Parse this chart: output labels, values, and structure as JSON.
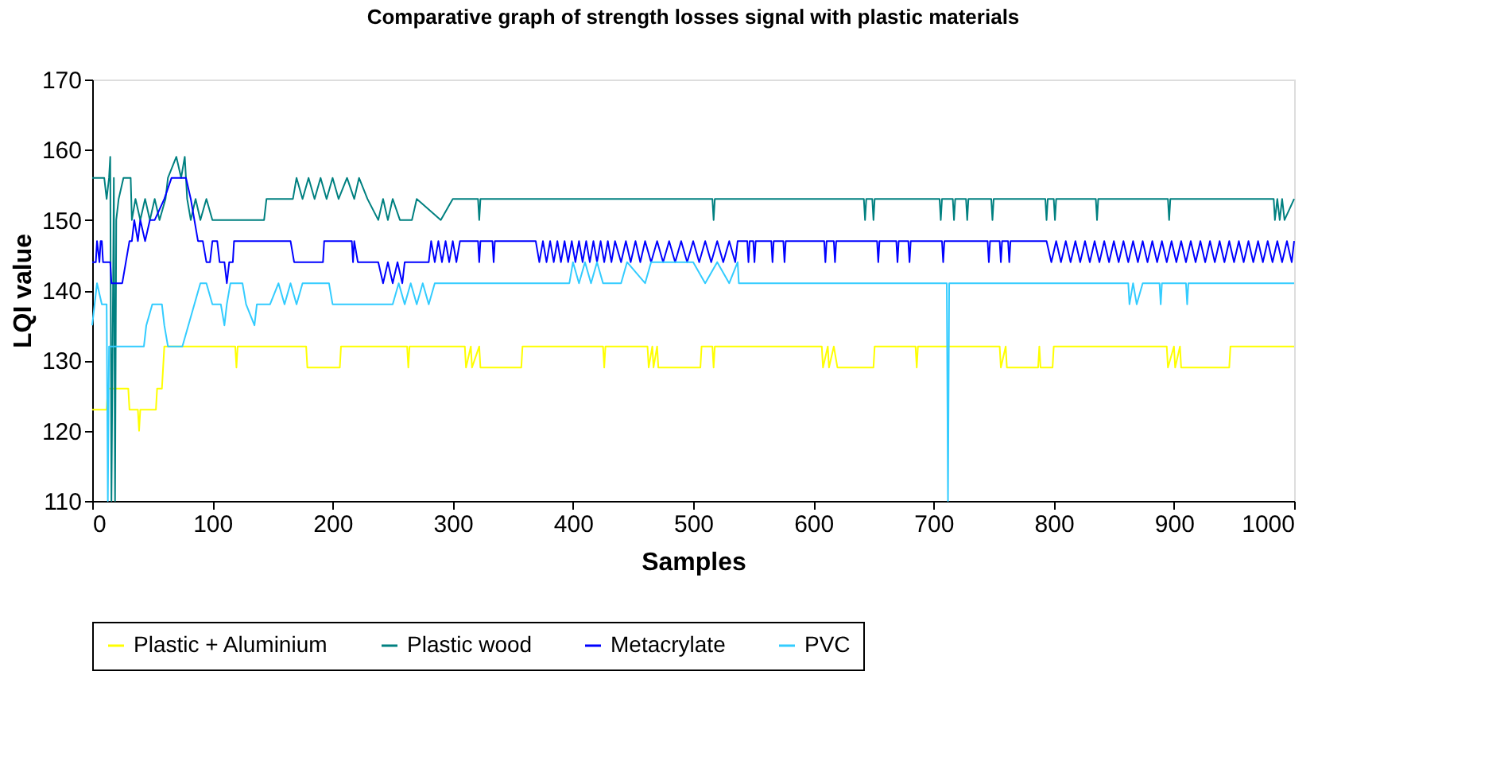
{
  "chart_data": {
    "type": "line",
    "title": "Comparative graph of strength losses signal with plastic materials",
    "xlabel": "Samples",
    "ylabel": "LQI value",
    "xlim": [
      0,
      1000
    ],
    "xticks": [
      0,
      100,
      200,
      300,
      400,
      500,
      600,
      700,
      800,
      900,
      1000
    ],
    "ylim": [
      110,
      170
    ],
    "yticks": [
      110,
      120,
      130,
      140,
      150,
      160,
      170
    ],
    "grid": false,
    "legend": "bottom",
    "marker": "none",
    "line_style": "solid",
    "series": [
      {
        "name": "Plastic + Aluminium",
        "color": "#ffff00",
        "x": [
          0,
          12,
          13,
          30,
          31,
          38,
          39,
          40,
          53,
          54,
          58,
          60,
          119,
          120,
          121,
          178,
          179,
          206,
          207,
          262,
          263,
          264,
          310,
          311,
          315,
          316,
          322,
          323,
          357,
          358,
          425,
          426,
          427,
          462,
          463,
          466,
          467,
          470,
          471,
          506,
          507,
          516,
          517,
          518,
          607,
          608,
          612,
          613,
          617,
          620,
          650,
          651,
          685,
          686,
          687,
          755,
          756,
          760,
          761,
          787,
          788,
          789,
          799,
          800,
          894,
          895,
          900,
          901,
          905,
          906,
          946,
          947,
          1000
        ],
        "values": [
          123,
          123,
          126,
          126,
          123,
          123,
          120,
          123,
          123,
          126,
          126,
          132,
          132,
          129,
          132,
          132,
          129,
          129,
          132,
          132,
          129,
          132,
          132,
          129,
          132,
          129,
          132,
          129,
          129,
          132,
          132,
          129,
          132,
          132,
          129,
          132,
          129,
          132,
          129,
          129,
          132,
          132,
          129,
          132,
          132,
          129,
          132,
          129,
          132,
          129,
          129,
          132,
          132,
          129,
          132,
          132,
          129,
          132,
          129,
          129,
          132,
          129,
          129,
          132,
          132,
          129,
          132,
          129,
          132,
          129,
          129,
          132,
          132
        ]
      },
      {
        "name": "Plastic wood",
        "color": "#008080",
        "x": [
          0,
          10,
          12,
          14,
          15,
          16,
          18,
          19,
          20,
          22,
          26,
          32,
          33,
          36,
          40,
          44,
          48,
          52,
          56,
          61,
          63,
          70,
          74,
          77,
          79,
          82,
          86,
          90,
          95,
          100,
          105,
          143,
          145,
          167,
          170,
          175,
          180,
          185,
          190,
          195,
          200,
          205,
          212,
          218,
          222,
          229,
          238,
          242,
          246,
          250,
          256,
          266,
          270,
          290,
          300,
          321,
          322,
          323,
          516,
          517,
          518,
          642,
          643,
          644,
          649,
          650,
          651,
          705,
          706,
          707,
          716,
          717,
          718,
          727,
          728,
          729,
          748,
          749,
          750,
          793,
          794,
          795,
          800,
          801,
          802,
          835,
          836,
          837,
          895,
          896,
          897,
          983,
          984,
          986,
          988,
          990,
          992,
          1000
        ],
        "values": [
          156,
          156,
          153,
          156,
          159,
          110,
          156,
          110,
          150,
          153,
          156,
          156,
          150,
          153,
          150,
          153,
          150,
          153,
          150,
          153,
          156,
          159,
          156,
          159,
          153,
          150,
          153,
          150,
          153,
          150,
          150,
          150,
          153,
          153,
          156,
          153,
          156,
          153,
          156,
          153,
          156,
          153,
          156,
          153,
          156,
          153,
          150,
          153,
          150,
          153,
          150,
          150,
          153,
          150,
          153,
          153,
          150,
          153,
          153,
          150,
          153,
          153,
          150,
          153,
          153,
          150,
          153,
          153,
          150,
          153,
          153,
          150,
          153,
          153,
          150,
          153,
          153,
          150,
          153,
          153,
          150,
          153,
          153,
          150,
          153,
          153,
          150,
          153,
          153,
          150,
          153,
          153,
          150,
          153,
          150,
          153,
          150,
          153
        ]
      },
      {
        "name": "Metacrylate",
        "color": "#0000ff",
        "x": [
          0,
          3,
          4,
          6,
          7,
          8,
          9,
          15,
          16,
          25,
          28,
          31,
          33,
          35,
          38,
          40,
          44,
          48,
          52,
          60,
          66,
          78,
          82,
          85,
          88,
          92,
          95,
          98,
          100,
          104,
          106,
          110,
          112,
          114,
          117,
          118,
          165,
          168,
          192,
          193,
          216,
          217,
          218,
          221,
          238,
          242,
          246,
          250,
          254,
          258,
          260,
          280,
          282,
          285,
          288,
          291,
          294,
          297,
          300,
          303,
          306,
          321,
          322,
          323,
          333,
          334,
          335,
          369,
          372,
          375,
          378,
          381,
          384,
          387,
          390,
          393,
          396,
          399,
          402,
          405,
          408,
          411,
          414,
          417,
          420,
          423,
          426,
          429,
          432,
          435,
          440,
          444,
          448,
          452,
          456,
          460,
          465,
          470,
          475,
          480,
          485,
          490,
          495,
          500,
          505,
          510,
          515,
          520,
          525,
          530,
          535,
          537,
          545,
          546,
          547,
          550,
          551,
          552,
          565,
          566,
          567,
          575,
          576,
          577,
          609,
          610,
          611,
          617,
          618,
          619,
          653,
          654,
          655,
          669,
          670,
          671,
          679,
          680,
          681,
          707,
          708,
          709,
          745,
          746,
          747,
          755,
          756,
          757,
          762,
          763,
          764,
          794,
          798,
          802,
          806,
          810,
          814,
          818,
          822,
          826,
          830,
          834,
          838,
          842,
          846,
          850,
          854,
          858,
          862,
          866,
          870,
          874,
          878,
          882,
          886,
          890,
          894,
          898,
          902,
          906,
          910,
          914,
          918,
          922,
          926,
          930,
          934,
          938,
          942,
          946,
          950,
          954,
          958,
          962,
          966,
          970,
          974,
          978,
          982,
          986,
          990,
          994,
          998,
          1000
        ],
        "values": [
          144,
          144,
          147,
          144,
          147,
          147,
          144,
          144,
          141,
          141,
          144,
          147,
          147,
          150,
          147,
          150,
          147,
          150,
          150,
          153,
          156,
          156,
          153,
          150,
          147,
          147,
          144,
          144,
          147,
          147,
          144,
          144,
          141,
          144,
          144,
          147,
          147,
          144,
          144,
          147,
          147,
          144,
          147,
          144,
          144,
          141,
          144,
          141,
          144,
          141,
          144,
          144,
          147,
          144,
          147,
          144,
          147,
          144,
          147,
          144,
          147,
          147,
          144,
          147,
          147,
          144,
          147,
          147,
          144,
          147,
          144,
          147,
          144,
          147,
          144,
          147,
          144,
          147,
          144,
          147,
          144,
          147,
          144,
          147,
          144,
          147,
          144,
          147,
          144,
          147,
          144,
          147,
          144,
          147,
          144,
          147,
          144,
          147,
          144,
          147,
          144,
          147,
          144,
          147,
          144,
          147,
          144,
          147,
          144,
          147,
          144,
          147,
          147,
          144,
          147,
          147,
          144,
          147,
          147,
          144,
          147,
          147,
          144,
          147,
          147,
          144,
          147,
          147,
          144,
          147,
          147,
          144,
          147,
          147,
          144,
          147,
          147,
          144,
          147,
          147,
          144,
          147,
          147,
          144,
          147,
          147,
          144,
          147,
          147,
          144,
          147,
          147,
          144,
          147,
          144,
          147,
          144,
          147,
          144,
          147,
          144,
          147,
          144,
          147,
          144,
          147,
          144,
          147,
          144,
          147,
          144,
          147,
          144,
          147,
          144,
          147,
          144,
          147,
          144,
          147,
          144,
          147,
          144,
          147,
          144,
          147,
          144,
          147,
          144,
          147,
          144,
          147,
          144,
          147,
          144,
          147,
          144,
          147,
          144,
          147,
          144,
          147,
          144,
          147
        ]
      },
      {
        "name": "PVC",
        "color": "#33ccff",
        "x": [
          0,
          4,
          8,
          12,
          13,
          14,
          15,
          43,
          45,
          50,
          58,
          60,
          63,
          75,
          80,
          85,
          90,
          95,
          100,
          107,
          110,
          112,
          115,
          125,
          128,
          135,
          137,
          148,
          155,
          160,
          165,
          170,
          175,
          180,
          197,
          200,
          250,
          255,
          260,
          265,
          270,
          275,
          280,
          285,
          292,
          397,
          400,
          405,
          410,
          415,
          420,
          425,
          440,
          445,
          460,
          465,
          480,
          500,
          510,
          520,
          530,
          537,
          538,
          711,
          712,
          713,
          862,
          863,
          866,
          869,
          874,
          875,
          888,
          889,
          890,
          910,
          911,
          912,
          1000
        ],
        "values": [
          135,
          141,
          138,
          138,
          110,
          132,
          132,
          132,
          135,
          138,
          138,
          135,
          132,
          132,
          135,
          138,
          141,
          141,
          138,
          138,
          135,
          138,
          141,
          141,
          138,
          135,
          138,
          138,
          141,
          138,
          141,
          138,
          141,
          141,
          141,
          138,
          138,
          141,
          138,
          141,
          138,
          141,
          138,
          141,
          141,
          141,
          144,
          141,
          144,
          141,
          144,
          141,
          141,
          144,
          141,
          144,
          144,
          144,
          141,
          144,
          141,
          144,
          141,
          141,
          110,
          141,
          141,
          138,
          141,
          138,
          141,
          141,
          141,
          138,
          141,
          141,
          138,
          141,
          141
        ]
      }
    ]
  }
}
